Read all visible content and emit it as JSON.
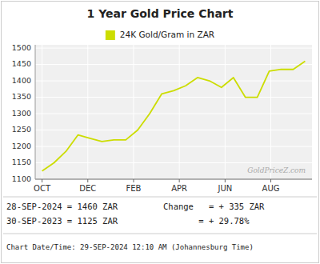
{
  "chart_data": {
    "type": "line",
    "title": "1 Year Gold Price Chart",
    "x": [
      0,
      0.522727,
      1.045455,
      1.568182,
      2.090909,
      2.613636,
      3.136364,
      3.659091,
      4.181818,
      4.704545,
      5.227273,
      5.75,
      6.272727,
      6.795455,
      7.318182,
      7.840909,
      8.363636,
      8.886364,
      9.409091,
      9.931818,
      10.454545,
      10.977273,
      11.5
    ],
    "series": [
      {
        "name": "24K Gold/Gram  in ZAR",
        "color": "#ccdd00",
        "values": [
          1125,
          1150,
          1185,
          1235,
          1225,
          1215,
          1220,
          1220,
          1250,
          1300,
          1360,
          1370,
          1385,
          1410,
          1400,
          1380,
          1410,
          1350,
          1350,
          1430,
          1435,
          1435,
          1460
        ]
      }
    ],
    "xlim": [
      -0.3,
      11.8
    ],
    "xticks": [
      {
        "value": 0,
        "label": "OCT"
      },
      {
        "value": 2,
        "label": "DEC"
      },
      {
        "value": 4,
        "label": "FEB"
      },
      {
        "value": 6,
        "label": "APR"
      },
      {
        "value": 8,
        "label": "JUN"
      },
      {
        "value": 10,
        "label": "AUG"
      }
    ],
    "ylim": [
      1100,
      1510
    ],
    "yticks": [
      1100,
      1150,
      1200,
      1250,
      1300,
      1350,
      1400,
      1450,
      1500
    ],
    "grid": true,
    "annotations": [
      "GoldPriceZ.com",
      "28-SEP-2024 = 1460 ZAR",
      "30-SEP-2023 = 1125 ZAR",
      "Change   = + 335 ZAR",
      "       = + 29.78%",
      "Chart Date/Time: 29-SEP-2024 12:10 AM (Johannesburg Time)"
    ]
  }
}
